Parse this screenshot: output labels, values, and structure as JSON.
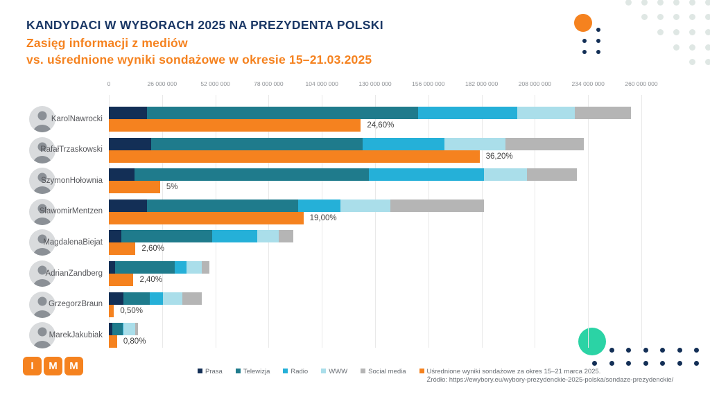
{
  "header": {
    "title": "KANDYDACI W WYBORACH 2025 NA PREZYDENTA POLSKI",
    "subtitle_line1": "Zasięg informacji z mediów",
    "subtitle_line2": "vs. uśrednione wyniki sondażowe w okresie 15–21.03.2025"
  },
  "colors": {
    "title_navy": "#1b3866",
    "orange": "#f5821f",
    "prasa": "#132f56",
    "telewizja": "#1f7b8c",
    "radio": "#25b0d8",
    "www": "#aadeea",
    "social_media": "#b5b5b5",
    "teal_circle": "#2bd3a5",
    "deco_dot_gray": "#dfe7e4",
    "deco_dot_navy": "#132f56",
    "gridline": "#e9e9e9",
    "axis_label_gray": "#8f9296",
    "name_text": "#55565a",
    "value_text": "#3f3f3f",
    "legend_text": "#676c72"
  },
  "chart_data": {
    "type": "bar",
    "orientation": "horizontal",
    "stacked": true,
    "title": "KANDYDACI W WYBORACH 2025 NA PREZYDENTA POLSKI",
    "subtitle": "Zasięg informacji z mediów vs. uśrednione wyniki sondażowe w okresie 15–21.03.2025",
    "value_axis": {
      "position": "top",
      "min": 0,
      "max": 260000000,
      "tick_step": 26000000,
      "grid": true,
      "tick_labels": [
        "0",
        "26 000 000",
        "52 000 000",
        "78 000 000",
        "104 000 000",
        "130 000 000",
        "156 000 000",
        "182 000 000",
        "208 000 000",
        "234 000 000",
        "260 000 000"
      ]
    },
    "series_names": [
      "Prasa",
      "Telewizja",
      "Radio",
      "WWW",
      "Social media"
    ],
    "series_colors": [
      "#132f56",
      "#1f7b8c",
      "#25b0d8",
      "#aadeea",
      "#b5b5b5"
    ],
    "poll_series_name": "Uśrednione wyniki sondażowe za okres 15–21 marca 2025.",
    "poll_percent_unit_value": 5000000,
    "legend_position": "bottom",
    "candidates": [
      {
        "name_lines": [
          "Karol",
          "Nawrocki"
        ],
        "media_values": [
          18500000,
          132500000,
          48500000,
          28000000,
          27500000
        ],
        "media_total": 255000000,
        "poll_percent": 24.6,
        "poll_label": "24,60%"
      },
      {
        "name_lines": [
          "Rafał",
          "Trzaskowski"
        ],
        "media_values": [
          20500000,
          103500000,
          40000000,
          29500000,
          38500000
        ],
        "media_total": 232000000,
        "poll_percent": 36.2,
        "poll_label": "36,20%"
      },
      {
        "name_lines": [
          "Szymon",
          "Hołownia"
        ],
        "media_values": [
          12500000,
          114500000,
          56000000,
          21000000,
          24500000
        ],
        "media_total": 228500000,
        "poll_percent": 5,
        "poll_label": "5%"
      },
      {
        "name_lines": [
          "Sławomir",
          "Mentzen"
        ],
        "media_values": [
          18500000,
          74000000,
          20500000,
          24500000,
          45500000
        ],
        "media_total": 183000000,
        "poll_percent": 19,
        "poll_label": "19,00%"
      },
      {
        "name_lines": [
          "Magdalena",
          "Biejat"
        ],
        "media_values": [
          6000000,
          44500000,
          22000000,
          10500000,
          7000000
        ],
        "media_total": 90000000,
        "poll_percent": 2.6,
        "poll_label": "2,60%"
      },
      {
        "name_lines": [
          "Adrian",
          "Zandberg"
        ],
        "media_values": [
          3000000,
          29000000,
          6000000,
          7500000,
          3500000
        ],
        "media_total": 49000000,
        "poll_percent": 2.4,
        "poll_label": "2,40%"
      },
      {
        "name_lines": [
          "Grzegorz",
          "Braun"
        ],
        "media_values": [
          7000000,
          13000000,
          6500000,
          9500000,
          9500000
        ],
        "media_total": 45500000,
        "poll_percent": 0.5,
        "poll_label": "0,50%"
      },
      {
        "name_lines": [
          "Marek",
          "Jakubiak"
        ],
        "media_values": [
          1700000,
          5000000,
          500000,
          5800000,
          1200000
        ],
        "media_total": 14200000,
        "poll_percent": 0.8,
        "poll_label": "0,80%"
      }
    ]
  },
  "legend": {
    "media_items": [
      {
        "label": "Prasa",
        "color": "#132f56"
      },
      {
        "label": "Telewizja",
        "color": "#1f7b8c"
      },
      {
        "label": "Radio",
        "color": "#25b0d8"
      },
      {
        "label": "WWW",
        "color": "#aadeea"
      },
      {
        "label": "Social media",
        "color": "#b5b5b5"
      }
    ],
    "poll_item": {
      "label": "Uśrednione wyniki sondażowe za okres 15–21 marca 2025.",
      "source": "Źródło: https://ewybory.eu/wybory-prezydenckie-2025-polska/sondaze-prezydenckie/",
      "color": "#f5821f"
    }
  },
  "logo": {
    "letters": [
      "I",
      "M",
      "M"
    ]
  }
}
